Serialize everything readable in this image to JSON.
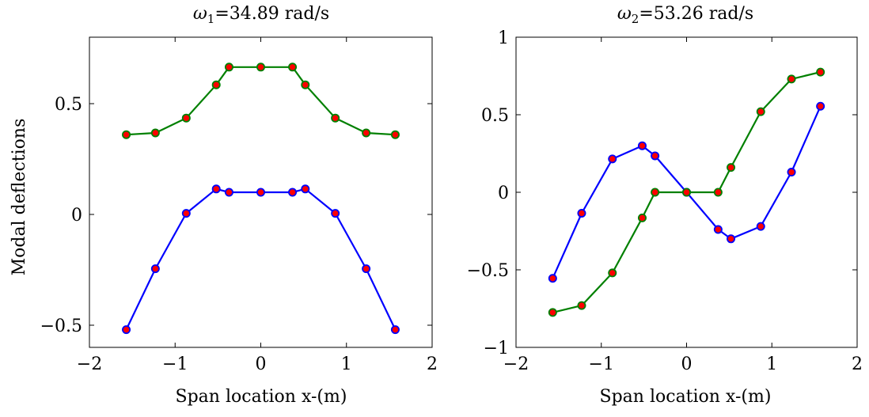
{
  "chart_data": [
    {
      "type": "line",
      "title_symbol": "ω",
      "title_sub": "1",
      "title_value": "=34.89 rad/s",
      "xlabel": "Span location x-(m)",
      "ylabel": "Modal deflections",
      "xlim": [
        -2,
        2
      ],
      "ylim": [
        -0.6,
        0.8
      ],
      "xticks": [
        -2,
        -1,
        0,
        1,
        2
      ],
      "xtick_labels": [
        "−2",
        "−1",
        "0",
        "1",
        "2"
      ],
      "yticks": [
        -0.5,
        0,
        0.5
      ],
      "ytick_labels": [
        "−0.5",
        "0",
        "0.5"
      ],
      "grid": false,
      "series": [
        {
          "color": "#0000ff",
          "marker_color": "#ff0000",
          "x": [
            -1.57,
            -1.23,
            -0.87,
            -0.52,
            -0.37,
            0,
            0.37,
            0.52,
            0.87,
            1.23,
            1.57
          ],
          "y": [
            -0.52,
            -0.245,
            0.005,
            0.115,
            0.1,
            0.1,
            0.1,
            0.115,
            0.005,
            -0.245,
            -0.52
          ]
        },
        {
          "color": "#008000",
          "marker_color": "#ff0000",
          "x": [
            -1.57,
            -1.23,
            -0.87,
            -0.52,
            -0.37,
            0,
            0.37,
            0.52,
            0.87,
            1.23,
            1.57
          ],
          "y": [
            0.36,
            0.368,
            0.435,
            0.585,
            0.665,
            0.665,
            0.665,
            0.585,
            0.435,
            0.368,
            0.36
          ]
        }
      ]
    },
    {
      "type": "line",
      "title_symbol": "ω",
      "title_sub": "2",
      "title_value": "=53.26 rad/s",
      "xlabel": "Span location x-(m)",
      "ylabel": "",
      "xlim": [
        -2,
        2
      ],
      "ylim": [
        -1,
        1
      ],
      "xticks": [
        -2,
        -1,
        0,
        1,
        2
      ],
      "xtick_labels": [
        "−2",
        "−1",
        "0",
        "1",
        "2"
      ],
      "yticks": [
        -1,
        -0.5,
        0,
        0.5,
        1
      ],
      "ytick_labels": [
        "−1",
        "−0.5",
        "0",
        "0.5",
        "1"
      ],
      "grid": false,
      "series": [
        {
          "color": "#0000ff",
          "marker_color": "#ff0000",
          "x": [
            -1.57,
            -1.23,
            -0.87,
            -0.52,
            -0.37,
            0,
            0.37,
            0.52,
            0.87,
            1.23,
            1.57
          ],
          "y": [
            -0.555,
            -0.135,
            0.215,
            0.3,
            0.235,
            0,
            -0.24,
            -0.3,
            -0.22,
            0.13,
            0.555
          ]
        },
        {
          "color": "#008000",
          "marker_color": "#ff0000",
          "x": [
            -1.57,
            -1.23,
            -0.87,
            -0.52,
            -0.37,
            0,
            0.37,
            0.52,
            0.87,
            1.23,
            1.57
          ],
          "y": [
            -0.775,
            -0.73,
            -0.52,
            -0.165,
            0,
            0,
            0,
            0.16,
            0.52,
            0.73,
            0.775
          ]
        }
      ]
    }
  ]
}
